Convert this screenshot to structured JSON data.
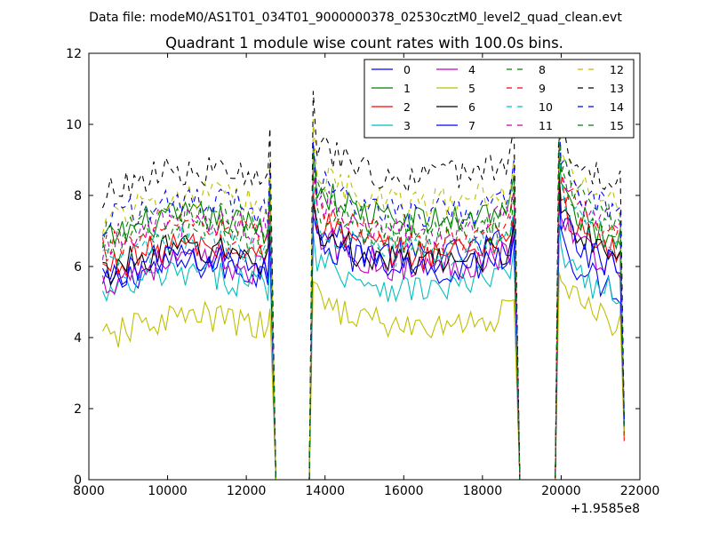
{
  "figure": {
    "suptitle": "Data file: modeM0/AS1T01_034T01_9000000378_02530cztM0_level2_quad_clean.evt"
  },
  "chart_data": {
    "type": "line",
    "title": "Quadrant 1 module wise count rates with 100.0s bins.",
    "xlabel": "",
    "ylabel": "",
    "xlim": [
      8000,
      22000
    ],
    "ylim": [
      0,
      12
    ],
    "x_offset_label": "+1.9585e8",
    "grid": false,
    "legend_placement": "top-right",
    "legend_columns": 4,
    "x_ticks": [
      8000,
      10000,
      12000,
      14000,
      16000,
      18000,
      20000,
      22000
    ],
    "x_tick_labels": [
      "8000",
      "10000",
      "12000",
      "14000",
      "16000",
      "18000",
      "20000",
      "22000"
    ],
    "y_ticks": [
      0,
      2,
      4,
      6,
      8,
      10,
      12
    ],
    "y_tick_labels": [
      "0",
      "2",
      "4",
      "6",
      "8",
      "10",
      "12"
    ],
    "segments": [
      {
        "start": 8350,
        "end": 12550,
        "spike_at": 12600,
        "spike_factor": 1.25,
        "drop_end": 12750,
        "gap_until": 13600
      },
      {
        "start": 13800,
        "end": 18800,
        "spike_at": 18800,
        "spike_factor": 1.2,
        "rise_from": 13600,
        "drop_end": 18950,
        "gap_until": 19850
      },
      {
        "start": 20000,
        "end": 21500,
        "spike_at": 19950,
        "spike_factor": 1.3,
        "rise_from": 19850,
        "drop_end": 21600
      }
    ],
    "series": [
      {
        "name": "0",
        "color": "#0000ff",
        "dash": "solid",
        "levels": [
          5.4,
          6.2,
          5.6
        ]
      },
      {
        "name": "1",
        "color": "#008000",
        "dash": "solid",
        "levels": [
          6.7,
          7.2,
          7.0
        ]
      },
      {
        "name": "2",
        "color": "#ff0000",
        "dash": "solid",
        "levels": [
          5.9,
          6.3,
          6.6
        ]
      },
      {
        "name": "3",
        "color": "#00bfbf",
        "dash": "solid",
        "levels": [
          5.1,
          5.3,
          5.4
        ]
      },
      {
        "name": "4",
        "color": "#bf00bf",
        "dash": "solid",
        "levels": [
          5.5,
          5.9,
          6.3
        ]
      },
      {
        "name": "5",
        "color": "#bfbf00",
        "dash": "solid",
        "levels": [
          3.9,
          4.2,
          4.6
        ]
      },
      {
        "name": "6",
        "color": "#000000",
        "dash": "solid",
        "levels": [
          5.8,
          6.0,
          6.6
        ]
      },
      {
        "name": "7",
        "color": "#0000ff",
        "dash": "solid",
        "levels": [
          5.6,
          5.8,
          6.2
        ]
      },
      {
        "name": "8",
        "color": "#008000",
        "dash": "dashed",
        "levels": [
          6.3,
          6.6,
          7.2
        ]
      },
      {
        "name": "9",
        "color": "#ff0000",
        "dash": "dashed",
        "levels": [
          6.4,
          6.7,
          7.2
        ]
      },
      {
        "name": "10",
        "color": "#00bfbf",
        "dash": "dashed",
        "levels": [
          6.0,
          6.3,
          7.0
        ]
      },
      {
        "name": "11",
        "color": "#bf00bf",
        "dash": "dashed",
        "levels": [
          6.6,
          6.9,
          7.4
        ]
      },
      {
        "name": "12",
        "color": "#bfbf00",
        "dash": "dashed",
        "levels": [
          7.3,
          7.7,
          8.0
        ]
      },
      {
        "name": "13",
        "color": "#000000",
        "dash": "dashed",
        "levels": [
          8.0,
          8.4,
          8.6
        ]
      },
      {
        "name": "14",
        "color": "#0000ff",
        "dash": "dashed",
        "levels": [
          7.2,
          7.4,
          7.8
        ]
      },
      {
        "name": "15",
        "color": "#008000",
        "dash": "dashed",
        "levels": [
          6.8,
          7.0,
          7.6
        ]
      }
    ]
  }
}
